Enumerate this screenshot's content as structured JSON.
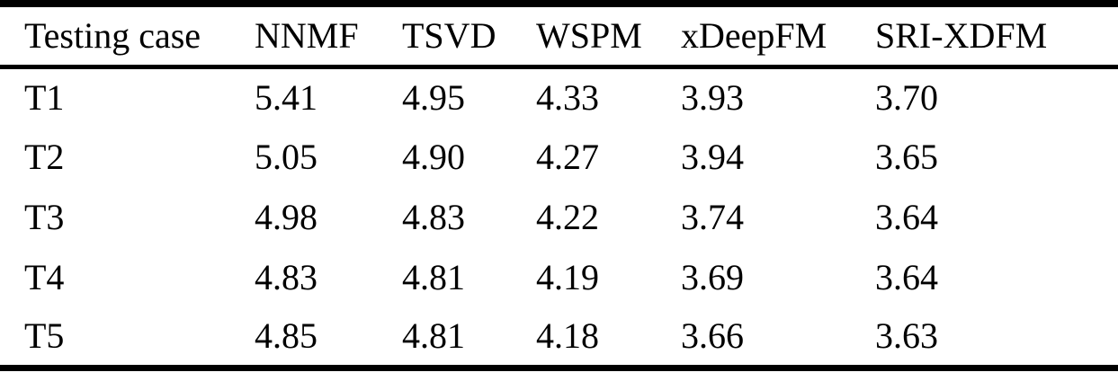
{
  "table": {
    "columns": [
      "Testing case",
      "NNMF",
      "TSVD",
      "WSPM",
      "xDeepFM",
      "SRI-XDFM"
    ],
    "rows": [
      {
        "label": "T1",
        "values": [
          "5.41",
          "4.95",
          "4.33",
          "3.93",
          "3.70"
        ]
      },
      {
        "label": "T2",
        "values": [
          "5.05",
          "4.90",
          "4.27",
          "3.94",
          "3.65"
        ]
      },
      {
        "label": "T3",
        "values": [
          "4.98",
          "4.83",
          "4.22",
          "3.74",
          "3.64"
        ]
      },
      {
        "label": "T4",
        "values": [
          "4.83",
          "4.81",
          "4.19",
          "3.69",
          "3.64"
        ]
      },
      {
        "label": "T5",
        "values": [
          "4.85",
          "4.81",
          "4.18",
          "3.66",
          "3.63"
        ]
      }
    ],
    "colors": {
      "text": "#000000",
      "background": "#ffffff",
      "rule": "#000000"
    }
  }
}
